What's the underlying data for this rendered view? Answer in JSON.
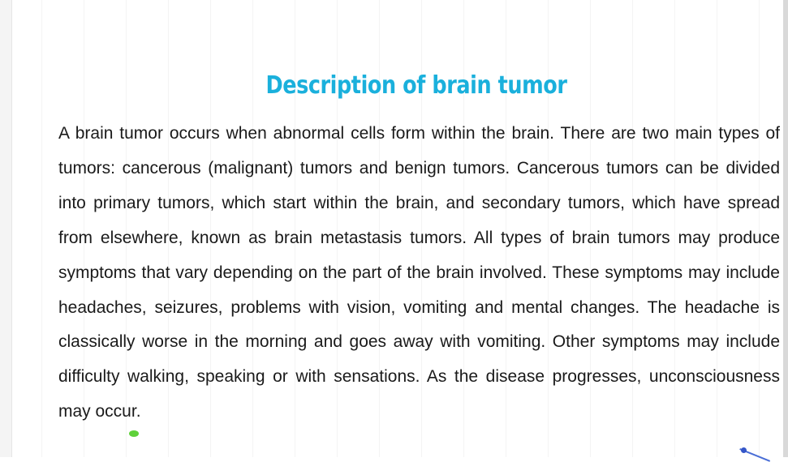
{
  "slide": {
    "title": "Description of brain tumor",
    "body": "A brain tumor occurs when abnormal cells form within the brain. There are two main types of tumors: cancerous (malignant) tumors and benign tumors. Cancerous tumors can be divided into primary tumors, which start within the brain, and secondary tumors, which have spread from elsewhere, known as brain metastasis tumors. All types of brain tumors may produce symptoms that vary depending on the part of the brain involved. These symptoms may include headaches, seizures, problems with vision, vomiting and mental changes. The headache is classically worse in the morning and goes away with vomiting. Other symptoms may include difficulty walking, speaking or with sensations. As the disease progresses, unconsciousness may occur."
  },
  "colors": {
    "title": "#1ab0dc",
    "text": "#1a1a1a",
    "background": "#ffffff"
  }
}
